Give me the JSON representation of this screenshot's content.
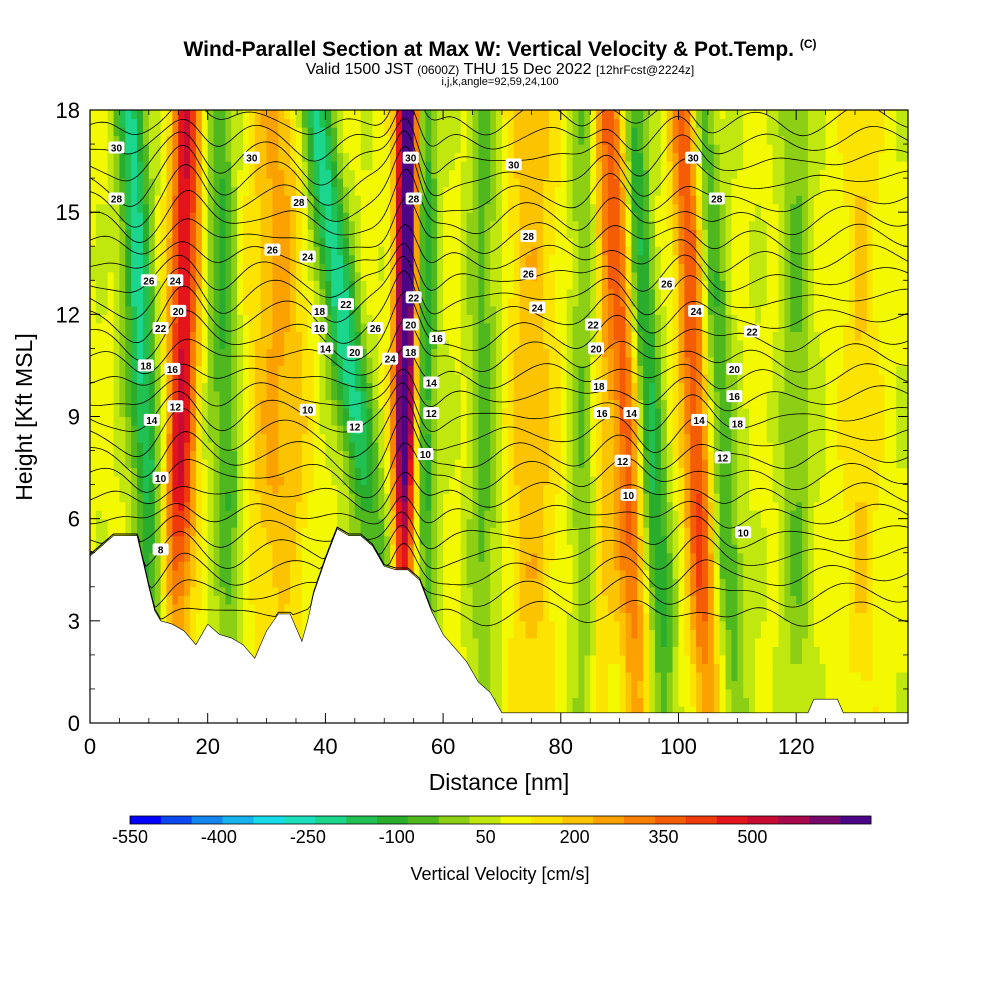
{
  "header": {
    "title": "Wind-Parallel Section at Max W: Vertical Velocity & Pot.Temp.",
    "title_mark": "(C)",
    "valid_prefix": "Valid 1500 JST",
    "valid_utc": "(0600Z)",
    "valid_date": "THU 15 Dec 2022",
    "valid_fcst": "[12hrFcst@2224z]",
    "params": "i,j,k,angle=92,59,24,100"
  },
  "chart_data": {
    "type": "heatmap",
    "xlabel": "Distance [nm]",
    "ylabel": "Height [Kft MSL]",
    "xlim": [
      0,
      139
    ],
    "ylim": [
      0,
      18
    ],
    "x_ticks": [
      0,
      20,
      40,
      60,
      80,
      100,
      120
    ],
    "y_ticks": [
      0,
      3,
      6,
      9,
      12,
      15,
      18
    ],
    "colorbar": {
      "title": "Vertical Velocity [cm/s]",
      "min": -550,
      "max": 700,
      "step": 50,
      "tick_values": [
        -550,
        -400,
        -250,
        -100,
        50,
        200,
        350,
        500
      ],
      "tick_labels": [
        "-550",
        "-400",
        "-250",
        "-100",
        "50",
        "200",
        "350",
        "500"
      ],
      "colors": [
        "#0000ff",
        "#0a48f0",
        "#1485ef",
        "#16b4ee",
        "#19dcea",
        "#1ae0bd",
        "#1bd68c",
        "#21c053",
        "#2aac2c",
        "#4fb81e",
        "#8ccf14",
        "#c1e80e",
        "#f2f900",
        "#fde300",
        "#fcc400",
        "#fba200",
        "#f97f00",
        "#f45c05",
        "#f13a0b",
        "#e3141c",
        "#c70b33",
        "#a8084c",
        "#7a086c",
        "#4d0588"
      ]
    },
    "terrain": [
      [
        0,
        4.9
      ],
      [
        2,
        5.2
      ],
      [
        4,
        5.5
      ],
      [
        6,
        5.5
      ],
      [
        8,
        5.5
      ],
      [
        10,
        4.0
      ],
      [
        11,
        3.3
      ],
      [
        12,
        3.0
      ],
      [
        14,
        2.9
      ],
      [
        16,
        2.7
      ],
      [
        18,
        2.3
      ],
      [
        20,
        2.9
      ],
      [
        22,
        2.6
      ],
      [
        24,
        2.5
      ],
      [
        26,
        2.3
      ],
      [
        28,
        1.9
      ],
      [
        30,
        2.7
      ],
      [
        32,
        3.2
      ],
      [
        34,
        3.2
      ],
      [
        36,
        2.4
      ],
      [
        37,
        3.0
      ],
      [
        38,
        3.8
      ],
      [
        40,
        4.8
      ],
      [
        42,
        5.7
      ],
      [
        44,
        5.5
      ],
      [
        46,
        5.5
      ],
      [
        48,
        5.2
      ],
      [
        50,
        4.6
      ],
      [
        52,
        4.5
      ],
      [
        54,
        4.5
      ],
      [
        56,
        4.2
      ],
      [
        58,
        3.3
      ],
      [
        60,
        2.6
      ],
      [
        62,
        2.2
      ],
      [
        64,
        1.8
      ],
      [
        66,
        1.2
      ],
      [
        68,
        0.9
      ],
      [
        70,
        0.3
      ],
      [
        72,
        0.3
      ],
      [
        80,
        0.3
      ],
      [
        100,
        0.3
      ],
      [
        110,
        0.3
      ],
      [
        122,
        0.3
      ],
      [
        123,
        0.7
      ],
      [
        127,
        0.7
      ],
      [
        128,
        0.3
      ],
      [
        139,
        0.3
      ]
    ],
    "w_field": {
      "background": 60,
      "updrafts": [
        {
          "x0": 14.5,
          "shift": 2,
          "width": 2.5,
          "amp": 390
        },
        {
          "x0": 53.0,
          "shift": 1,
          "width": 1.8,
          "amp": 700
        },
        {
          "x0": 32.0,
          "shift": 0,
          "width": 5.0,
          "amp": 150
        },
        {
          "x0": 93.0,
          "shift": -4,
          "width": 2.5,
          "amp": 260
        },
        {
          "x0": 105.0,
          "shift": -4,
          "width": 2.5,
          "amp": 300
        },
        {
          "x0": 75.0,
          "shift": 0,
          "width": 4.5,
          "amp": 120
        },
        {
          "x0": 87.0,
          "shift": 0,
          "width": 2.0,
          "amp": 110
        },
        {
          "x0": 131.0,
          "shift": 0,
          "width": 3.0,
          "amp": 90
        }
      ],
      "downdrafts": [
        {
          "x0": 11.0,
          "shift": -4,
          "width": 2.5,
          "amp": -280
        },
        {
          "x0": 52.0,
          "shift": -14,
          "width": 3.0,
          "amp": -300
        },
        {
          "x0": 24.0,
          "shift": -2,
          "width": 2.5,
          "amp": -170
        },
        {
          "x0": 57.0,
          "shift": 0,
          "width": 2.0,
          "amp": -200
        },
        {
          "x0": 98.0,
          "shift": -6,
          "width": 2.3,
          "amp": -230
        },
        {
          "x0": 110.0,
          "shift": -6,
          "width": 2.5,
          "amp": -170
        },
        {
          "x0": 67.0,
          "shift": 0,
          "width": 2.5,
          "amp": -130
        },
        {
          "x0": 84.0,
          "shift": 0,
          "width": 2.5,
          "amp": -120
        },
        {
          "x0": 120.0,
          "shift": 0,
          "width": 2.5,
          "amp": -110
        }
      ]
    },
    "theta_contours": {
      "interval": 1,
      "min": 6,
      "max": 31,
      "labels": [
        {
          "text": "30",
          "x": 4.5,
          "y": 16.9
        },
        {
          "text": "28",
          "x": 4.5,
          "y": 15.4
        },
        {
          "text": "26",
          "x": 10,
          "y": 13.0
        },
        {
          "text": "22",
          "x": 12,
          "y": 11.6
        },
        {
          "text": "18",
          "x": 9.5,
          "y": 10.5
        },
        {
          "text": "14",
          "x": 10.5,
          "y": 8.9
        },
        {
          "text": "10",
          "x": 12,
          "y": 7.2
        },
        {
          "text": "8",
          "x": 12,
          "y": 5.1
        },
        {
          "text": "24",
          "x": 14.5,
          "y": 13.0
        },
        {
          "text": "20",
          "x": 15,
          "y": 12.1
        },
        {
          "text": "16",
          "x": 14,
          "y": 10.4
        },
        {
          "text": "12",
          "x": 14.5,
          "y": 9.3
        },
        {
          "text": "30",
          "x": 27.5,
          "y": 16.6
        },
        {
          "text": "28",
          "x": 35.5,
          "y": 15.3
        },
        {
          "text": "26",
          "x": 31,
          "y": 13.9
        },
        {
          "text": "24",
          "x": 37,
          "y": 13.7
        },
        {
          "text": "18",
          "x": 39,
          "y": 12.1
        },
        {
          "text": "16",
          "x": 39,
          "y": 11.6
        },
        {
          "text": "14",
          "x": 40,
          "y": 11.0
        },
        {
          "text": "10",
          "x": 37,
          "y": 9.2
        },
        {
          "text": "22",
          "x": 43.5,
          "y": 12.3
        },
        {
          "text": "20",
          "x": 45,
          "y": 10.9
        },
        {
          "text": "26",
          "x": 48.5,
          "y": 11.6
        },
        {
          "text": "24",
          "x": 51,
          "y": 10.7
        },
        {
          "text": "12",
          "x": 45,
          "y": 8.7
        },
        {
          "text": "30",
          "x": 54.5,
          "y": 16.6
        },
        {
          "text": "28",
          "x": 55,
          "y": 15.4
        },
        {
          "text": "22",
          "x": 55,
          "y": 12.5
        },
        {
          "text": "20",
          "x": 54.5,
          "y": 11.7
        },
        {
          "text": "18",
          "x": 54.5,
          "y": 10.9
        },
        {
          "text": "16",
          "x": 59,
          "y": 11.3
        },
        {
          "text": "14",
          "x": 58,
          "y": 10.0
        },
        {
          "text": "12",
          "x": 58,
          "y": 9.1
        },
        {
          "text": "10",
          "x": 57,
          "y": 7.9
        },
        {
          "text": "30",
          "x": 72,
          "y": 16.4
        },
        {
          "text": "28",
          "x": 74.5,
          "y": 14.3
        },
        {
          "text": "26",
          "x": 74.5,
          "y": 13.2
        },
        {
          "text": "24",
          "x": 76,
          "y": 12.2
        },
        {
          "text": "22",
          "x": 85.5,
          "y": 11.7
        },
        {
          "text": "20",
          "x": 86,
          "y": 11.0
        },
        {
          "text": "18",
          "x": 86.5,
          "y": 9.9
        },
        {
          "text": "16",
          "x": 87,
          "y": 9.1
        },
        {
          "text": "14",
          "x": 92,
          "y": 9.1
        },
        {
          "text": "12",
          "x": 90.5,
          "y": 7.7
        },
        {
          "text": "10",
          "x": 91.5,
          "y": 6.7
        },
        {
          "text": "30",
          "x": 102.5,
          "y": 16.6
        },
        {
          "text": "28",
          "x": 106.5,
          "y": 15.4
        },
        {
          "text": "26",
          "x": 98,
          "y": 12.9
        },
        {
          "text": "24",
          "x": 103,
          "y": 12.1
        },
        {
          "text": "22",
          "x": 112.5,
          "y": 11.5
        },
        {
          "text": "20",
          "x": 109.5,
          "y": 10.4
        },
        {
          "text": "16",
          "x": 109.5,
          "y": 9.6
        },
        {
          "text": "18",
          "x": 110,
          "y": 8.8
        },
        {
          "text": "14",
          "x": 103.5,
          "y": 8.9
        },
        {
          "text": "12",
          "x": 107.5,
          "y": 7.8
        },
        {
          "text": "10",
          "x": 111,
          "y": 5.6
        }
      ]
    }
  }
}
